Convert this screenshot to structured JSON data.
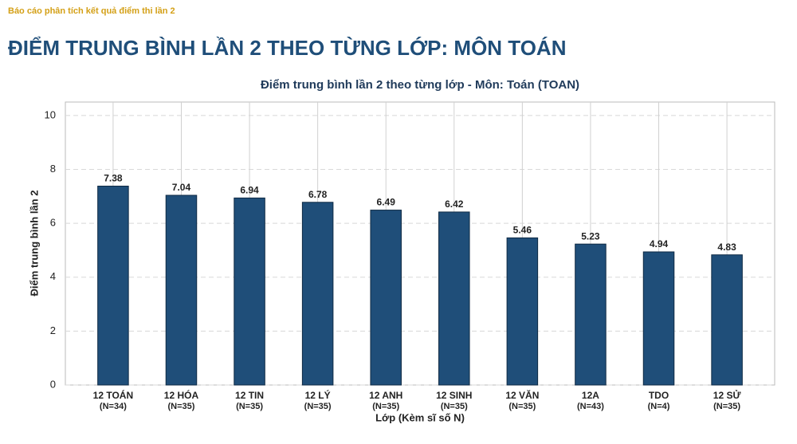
{
  "header": {
    "subtitle": "Báo cáo phân tích kết quả điểm thi lần 2",
    "title": "ĐIỂM TRUNG BÌNH LẦN 2 THEO TỪNG LỚP: MÔN TOÁN"
  },
  "chart_data": {
    "type": "bar",
    "title": "Điểm trung bình lần 2 theo từng lớp - Môn: Toán (TOAN)",
    "x_label": "Lớp (Kèm sĩ số N)",
    "y_label": "Điểm trung bình lần 2",
    "categories": [
      [
        "12 TOÁN",
        "(N=34)"
      ],
      [
        "12 HÓA",
        "(N=35)"
      ],
      [
        "12 TIN",
        "(N=35)"
      ],
      [
        "12 LÝ",
        "(N=35)"
      ],
      [
        "12 ANH",
        "(N=35)"
      ],
      [
        "12 SINH",
        "(N=35)"
      ],
      [
        "12 VĂN",
        "(N=35)"
      ],
      [
        "12A",
        "(N=43)"
      ],
      [
        "TDO",
        "(N=4)"
      ],
      [
        "12 SỬ",
        "(N=35)"
      ]
    ],
    "values": [
      7.38,
      7.04,
      6.94,
      6.78,
      6.49,
      6.42,
      5.46,
      5.23,
      4.94,
      4.83
    ],
    "color": "#1f4e79",
    "ylim": [
      0,
      10.5
    ],
    "yticks": [
      0,
      2,
      4,
      6,
      8,
      10
    ],
    "grid": true
  }
}
